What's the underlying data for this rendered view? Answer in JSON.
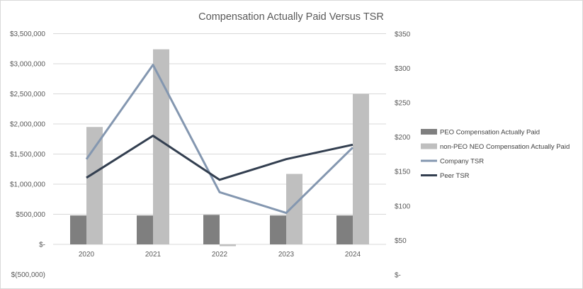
{
  "chart_data": {
    "type": "bar+line",
    "title": "Compensation Actually Paid Versus TSR",
    "categories": [
      "2020",
      "2021",
      "2022",
      "2023",
      "2024"
    ],
    "left_axis": {
      "min": -500000,
      "max": 3500000,
      "step": 500000,
      "tick_labels": [
        "$(500,000)",
        "$-",
        "$500,000",
        "$1,000,000",
        "$1,500,000",
        "$2,000,000",
        "$2,500,000",
        "$3,000,000",
        "$3,500,000"
      ]
    },
    "right_axis": {
      "min": 0,
      "max": 350,
      "step": 50,
      "tick_labels": [
        "$-",
        "$50",
        "$100",
        "$150",
        "$200",
        "$250",
        "$300",
        "$350"
      ]
    },
    "grid": true,
    "legend_position": "right",
    "series": [
      {
        "name": "PEO Compensation Actually Paid",
        "kind": "bar",
        "axis": "left",
        "color": "#7f7f7f",
        "values": [
          480000,
          480000,
          490000,
          480000,
          480000
        ]
      },
      {
        "name": "non-PEO NEO Compensation Actually Paid",
        "kind": "bar",
        "axis": "left",
        "color": "#bfbfbf",
        "values": [
          1950000,
          3240000,
          -30000,
          1170000,
          2500000
        ]
      },
      {
        "name": "Company TSR",
        "kind": "line",
        "axis": "right",
        "color": "#8497b0",
        "values": [
          168,
          305,
          120,
          90,
          185
        ]
      },
      {
        "name": "Peer TSR",
        "kind": "line",
        "axis": "right",
        "color": "#333f50",
        "values": [
          141,
          202,
          138,
          168,
          189
        ]
      }
    ]
  }
}
